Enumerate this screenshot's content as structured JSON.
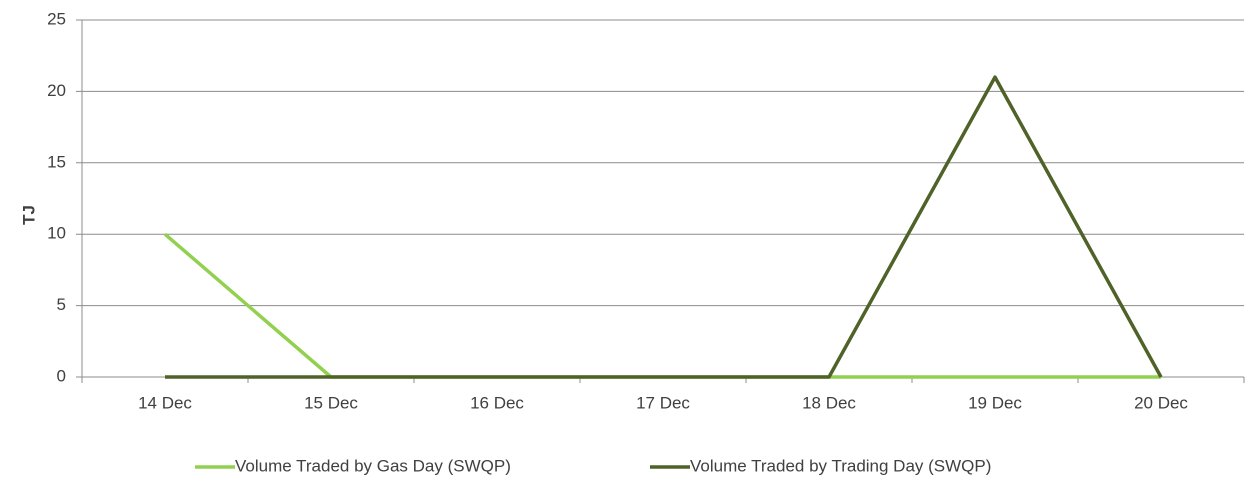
{
  "chart_data": {
    "type": "line",
    "y_label": "TJ",
    "categories": [
      "14 Dec",
      "15 Dec",
      "16 Dec",
      "17 Dec",
      "18 Dec",
      "19 Dec",
      "20 Dec"
    ],
    "series": [
      {
        "name": "Volume Traded by Gas Day (SWQP)",
        "color": "#92d050",
        "values": [
          10,
          0,
          0,
          0,
          0,
          0,
          0
        ]
      },
      {
        "name": "Volume Traded by Trading Day (SWQP)",
        "color": "#4f6228",
        "values": [
          0,
          0,
          0,
          0,
          0,
          21,
          0
        ]
      }
    ],
    "ylim": [
      0,
      25
    ],
    "yticks": [
      0,
      5,
      10,
      15,
      20,
      25
    ],
    "grid": true,
    "legend": "bottom"
  }
}
